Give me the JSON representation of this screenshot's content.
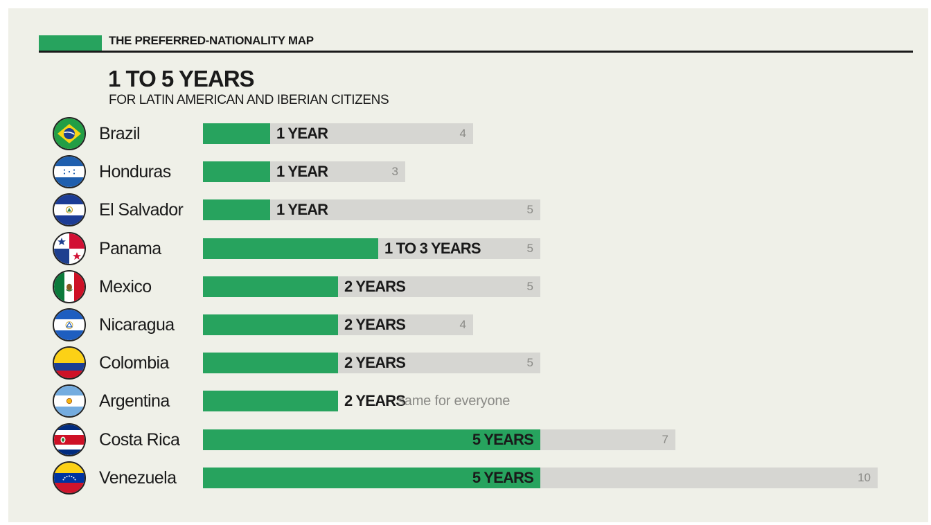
{
  "header": {
    "label": "THE PREFERRED-NATIONALITY MAP",
    "accent_color": "#27a35e"
  },
  "title": "1 TO 5 YEARS",
  "subtitle": "FOR LATIN AMERICAN AND IBERIAN CITIZENS",
  "chart_data": {
    "type": "bar",
    "orientation": "horizontal",
    "title": "1 TO 5 YEARS",
    "subtitle": "FOR LATIN AMERICAN AND IBERIAN CITIZENS",
    "xlim": [
      0,
      10
    ],
    "grid": false,
    "legend": "none",
    "colors": {
      "preferred": "#27a35e",
      "general": "#d6d6d2"
    },
    "categories": [
      "Brazil",
      "Honduras",
      "El Salvador",
      "Panama",
      "Mexico",
      "Nicaragua",
      "Colombia",
      "Argentina",
      "Costa Rica",
      "Venezuela"
    ],
    "series": [
      {
        "values": [
          1,
          1,
          1,
          3,
          2,
          2,
          2,
          2,
          5,
          5
        ]
      },
      {
        "values": [
          4,
          3,
          5,
          5,
          5,
          4,
          5,
          null,
          7,
          10
        ]
      }
    ],
    "rows": [
      {
        "country": "Brazil",
        "flag": "brazil-flag-icon",
        "preferred": 1,
        "label": "1 YEAR",
        "general": 4,
        "general_label": "4"
      },
      {
        "country": "Honduras",
        "flag": "honduras-flag-icon",
        "preferred": 1,
        "label": "1 YEAR",
        "general": 3,
        "general_label": "3"
      },
      {
        "country": "El Salvador",
        "flag": "el-salvador-flag-icon",
        "preferred": 1,
        "label": "1 YEAR",
        "general": 5,
        "general_label": "5"
      },
      {
        "country": "Panama",
        "flag": "panama-flag-icon",
        "preferred": 3,
        "label": "1 TO 3 YEARS",
        "general": 5,
        "general_label": "5"
      },
      {
        "country": "Mexico",
        "flag": "mexico-flag-icon",
        "preferred": 2,
        "label": "2 YEARS",
        "general": 5,
        "general_label": "5"
      },
      {
        "country": "Nicaragua",
        "flag": "nicaragua-flag-icon",
        "preferred": 2,
        "label": "2 YEARS",
        "general": 4,
        "general_label": "4"
      },
      {
        "country": "Colombia",
        "flag": "colombia-flag-icon",
        "preferred": 2,
        "label": "2 YEARS",
        "general": 5,
        "general_label": "5"
      },
      {
        "country": "Argentina",
        "flag": "argentina-flag-icon",
        "preferred": 2,
        "label": "2 YEARS",
        "general": null,
        "general_label": "",
        "note": "same for everyone"
      },
      {
        "country": "Costa Rica",
        "flag": "costa-rica-flag-icon",
        "preferred": 5,
        "label": "5 YEARS",
        "general": 7,
        "general_label": "7"
      },
      {
        "country": "Venezuela",
        "flag": "venezuela-flag-icon",
        "preferred": 5,
        "label": "5 YEARS",
        "general": 10,
        "general_label": "10"
      }
    ]
  }
}
